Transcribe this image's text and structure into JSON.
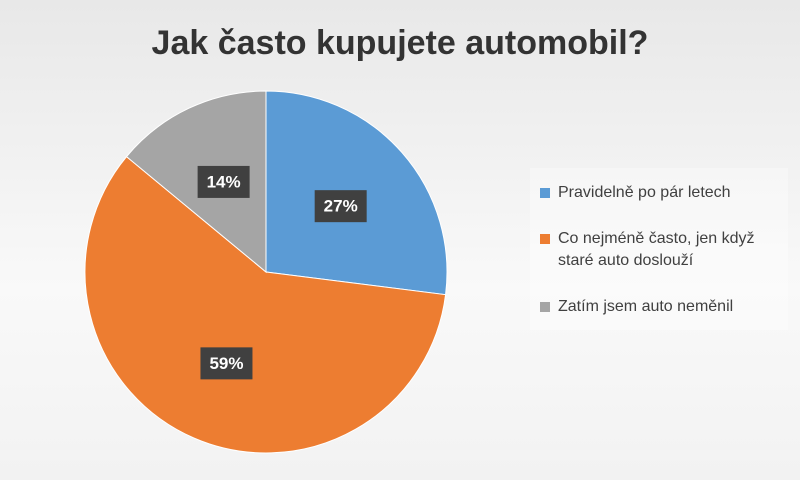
{
  "chart_data": {
    "type": "pie",
    "title": "Jak často kupujete automobil?",
    "categories": [
      "Pravidelně po pár letech",
      "Co nejméně často, jen když staré auto doslouží",
      "Zatím jsem auto neměnil"
    ],
    "values": [
      27,
      59,
      14
    ],
    "value_labels": [
      "27%",
      "59%",
      "14%"
    ],
    "colors": [
      "#5b9bd5",
      "#ed7d31",
      "#a5a5a5"
    ],
    "legend": "right"
  }
}
